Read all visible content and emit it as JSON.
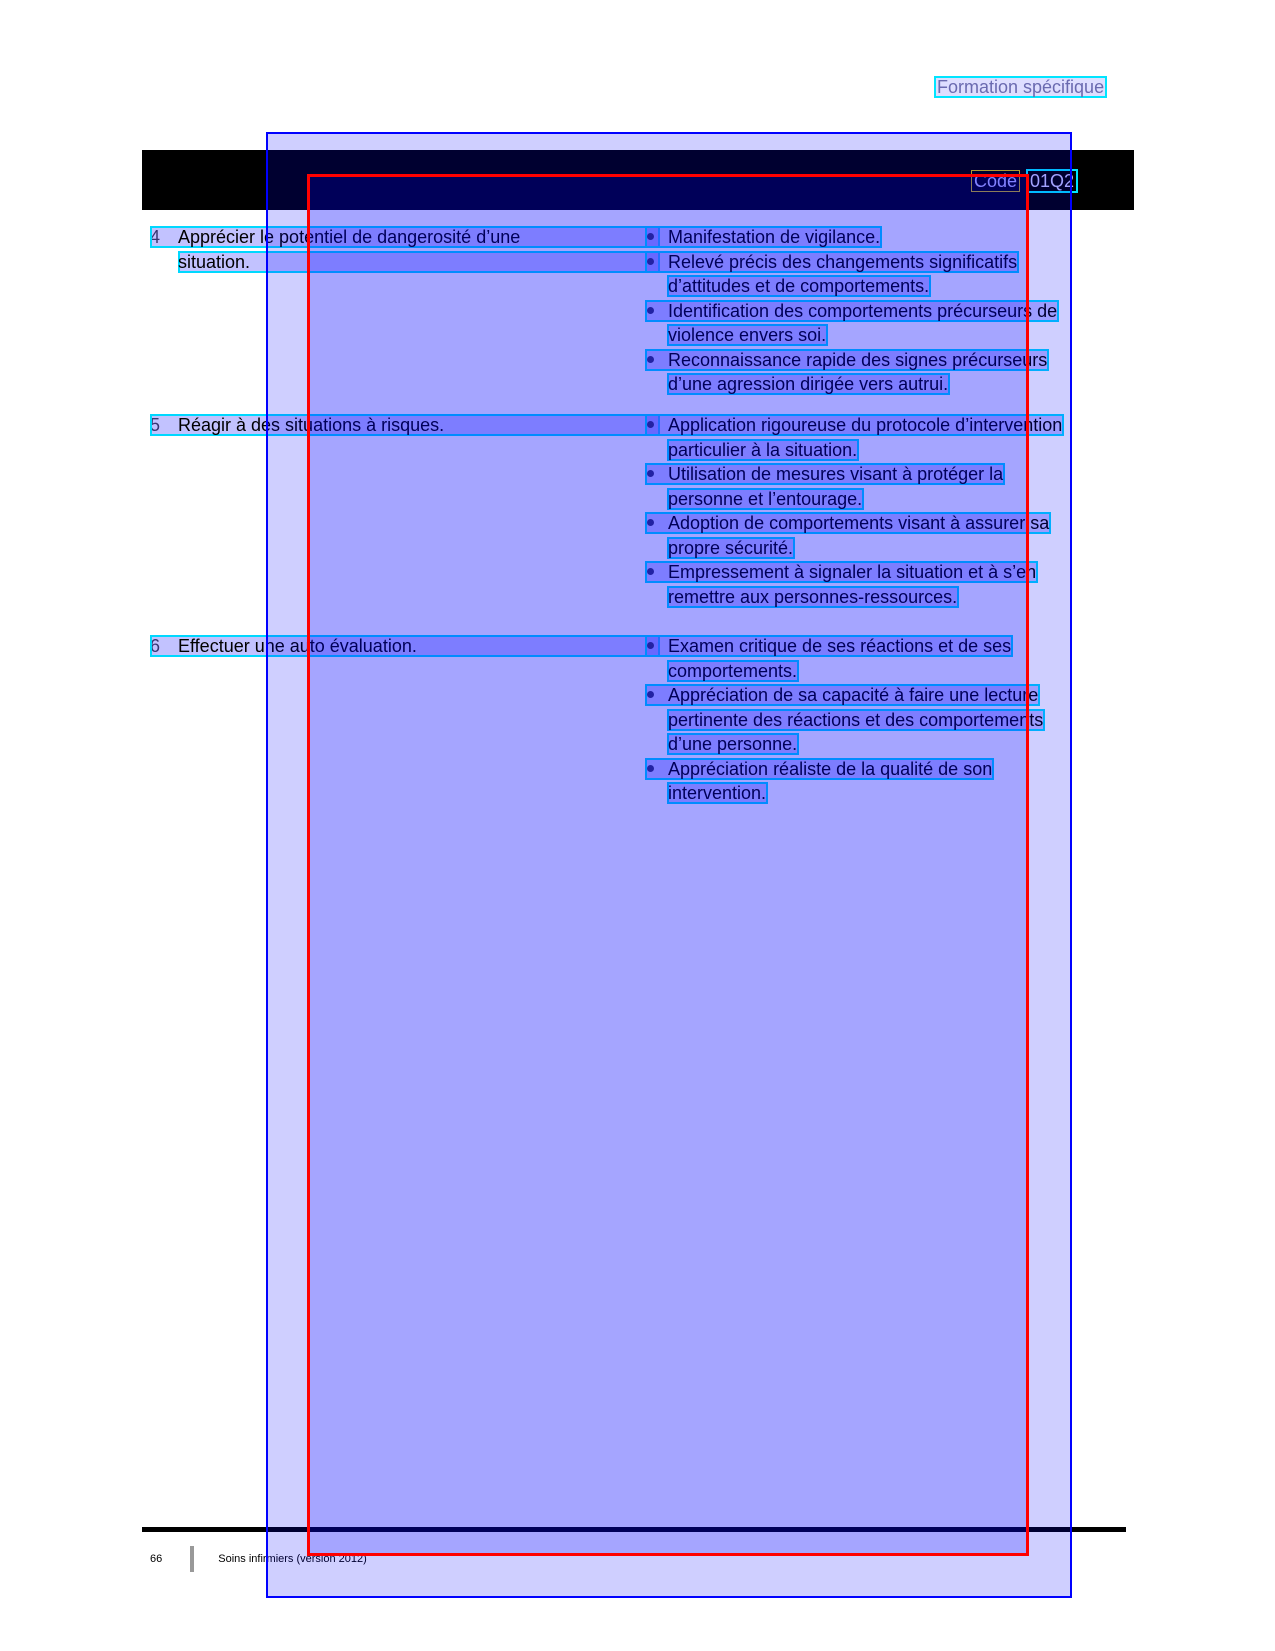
{
  "header": {
    "label": "Formation spécifique",
    "code_label": "Code",
    "code_value": "01Q2"
  },
  "competencies": [
    {
      "number": "4",
      "title_lines": [
        "Apprécier le potentiel de dangerosité d’une",
        "situation."
      ],
      "criteria": [
        [
          "Manifestation de vigilance."
        ],
        [
          "Relevé précis des changements significatifs",
          "d’attitudes et de comportements."
        ],
        [
          "Identification des comportements précurseurs de",
          "violence envers soi."
        ],
        [
          "Reconnaissance rapide des signes précurseurs",
          "d’une agression dirigée vers autrui."
        ]
      ]
    },
    {
      "number": "5",
      "title_lines": [
        "Réagir à des situations à risques."
      ],
      "criteria": [
        [
          "Application rigoureuse du protocole d’intervention",
          "particulier à la situation."
        ],
        [
          "Utilisation de mesures visant à protéger la",
          "personne et l’entourage."
        ],
        [
          "Adoption de comportements visant à assurer sa",
          "propre sécurité."
        ],
        [
          "Empressement à signaler la situation et à s’en",
          "remettre aux personnes-ressources."
        ]
      ]
    },
    {
      "number": "6",
      "title_lines": [
        "Effectuer une auto évaluation."
      ],
      "criteria": [
        [
          "Examen critique de ses réactions et de ses",
          "comportements."
        ],
        [
          "Appréciation de sa capacité à faire une lecture",
          "pertinente des réactions et des comportements",
          "d’une personne."
        ],
        [
          "Appréciation réaliste de la qualité de son",
          "intervention."
        ]
      ]
    }
  ],
  "footer": {
    "page_number": "66",
    "title": "Soins infirmiers (version 2012)"
  }
}
